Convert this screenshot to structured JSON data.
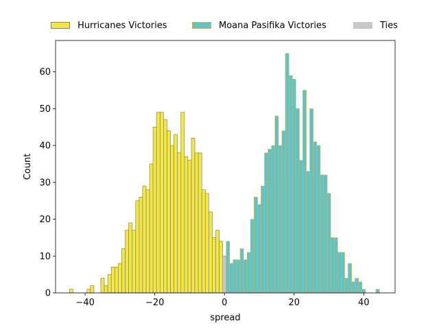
{
  "colors": {
    "hurricanes_fill": "#F5E545",
    "hurricanes_edge": "#7A8A6A",
    "moana_fill": "#5BC5C7",
    "moana_edge": "#E8A850",
    "ties_fill": "#C8C8C8",
    "ties_edge": "#999999"
  },
  "legend": [
    {
      "label": "Hurricanes Victories",
      "series": 0
    },
    {
      "label": "Moana Pasifika Victories",
      "series": 1
    },
    {
      "label": "Ties",
      "series": 2
    }
  ],
  "chart_data": {
    "type": "bar",
    "xlabel": "spread",
    "ylabel": "Count",
    "xlim": [
      -48.5,
      49
    ],
    "ylim": [
      0,
      68.5
    ],
    "xticks": [
      -40,
      -20,
      0,
      20,
      40
    ],
    "xtick_labels": [
      "−40",
      "−20",
      "0",
      "20",
      "40"
    ],
    "yticks": [
      0,
      10,
      20,
      30,
      40,
      50,
      60
    ],
    "ytick_labels": [
      "0",
      "10",
      "20",
      "30",
      "40",
      "50",
      "60"
    ],
    "bin_width": 1,
    "series": [
      {
        "name": "Hurricanes Victories",
        "x": [
          -44,
          -43,
          -42,
          -41,
          -40,
          -39,
          -38,
          -37,
          -36,
          -35,
          -34,
          -33,
          -32,
          -31,
          -30,
          -29,
          -28,
          -27,
          -26,
          -25,
          -24,
          -23,
          -22,
          -21,
          -20,
          -19,
          -18,
          -17,
          -16,
          -15,
          -14,
          -13,
          -12,
          -11,
          -10,
          -9,
          -8,
          -7,
          -6,
          -5,
          -4,
          -3,
          -2,
          -1
        ],
        "values": [
          1,
          0,
          0,
          0,
          0,
          1,
          2,
          0,
          0,
          4,
          2,
          5,
          7,
          7,
          8,
          12,
          17,
          19,
          17,
          25,
          26,
          29,
          28,
          35,
          45,
          49,
          49,
          47,
          44,
          40,
          43,
          38,
          49,
          37,
          36,
          42,
          38,
          38,
          28,
          27,
          22,
          15,
          17,
          14
        ]
      },
      {
        "name": "Moana Pasifika Victories",
        "x": [
          1,
          2,
          3,
          4,
          5,
          6,
          7,
          8,
          9,
          10,
          11,
          12,
          13,
          14,
          15,
          16,
          17,
          18,
          19,
          20,
          21,
          22,
          23,
          24,
          25,
          26,
          27,
          28,
          29,
          30,
          31,
          32,
          33,
          34,
          35,
          36,
          37,
          38,
          39,
          40,
          41,
          42,
          43,
          44
        ],
        "values": [
          14,
          8,
          9,
          9,
          12,
          9,
          11,
          20,
          26,
          24,
          29,
          38,
          39,
          40,
          48,
          40,
          44,
          65,
          59,
          58,
          50,
          36,
          55,
          33,
          50,
          41,
          40,
          32,
          32,
          27,
          15,
          15,
          11,
          11,
          4,
          8,
          3,
          4,
          3,
          1,
          0,
          0,
          0,
          1
        ]
      },
      {
        "name": "Ties",
        "x": [
          0
        ],
        "values": [
          10
        ]
      }
    ]
  }
}
